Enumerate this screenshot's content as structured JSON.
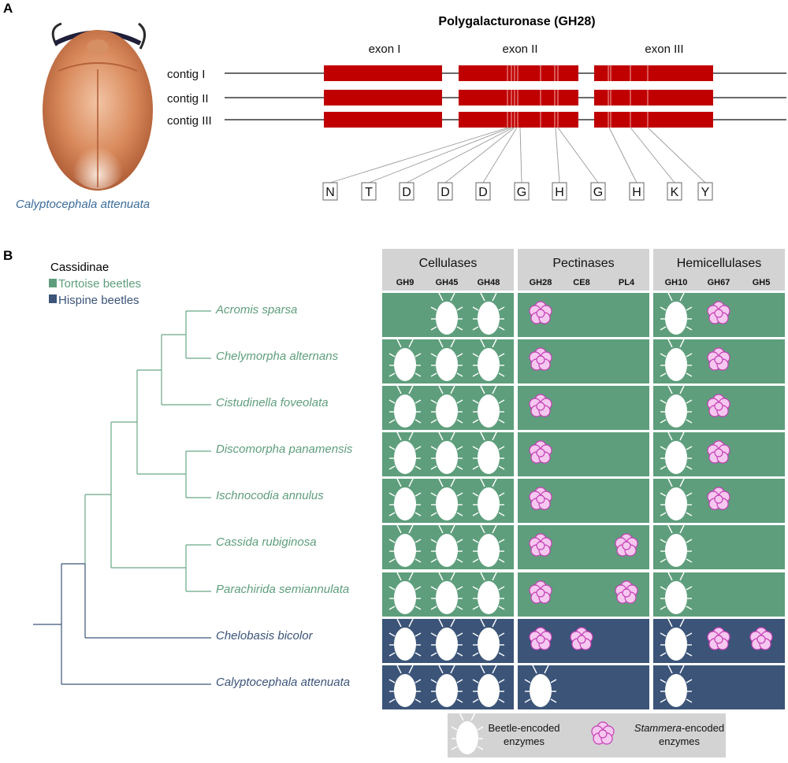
{
  "panel_a": {
    "letter": "A",
    "gene_title": "Polygalacturonase (GH28)",
    "exons": [
      "exon I",
      "exon II",
      "exon III"
    ],
    "contigs": [
      "contig I",
      "contig II",
      "contig III"
    ],
    "residues": [
      "N",
      "T",
      "D",
      "D",
      "D",
      "G",
      "H",
      "G",
      "H",
      "K",
      "Y"
    ],
    "species_label": "Calyptocephala attenuata",
    "exon_color": "#c00000"
  },
  "panel_b": {
    "letter": "B",
    "legend": {
      "title": "Cassidinae",
      "tortoise": "Tortoise beetles",
      "hispine": "Hispine beetles",
      "tortoise_color": "#5e9e7c",
      "hispine_color": "#3b5478"
    },
    "groups": [
      {
        "title": "Cellulases",
        "columns": [
          "GH9",
          "GH45",
          "GH48"
        ]
      },
      {
        "title": "Pectinases",
        "columns": [
          "GH28",
          "CE8",
          "PL4"
        ]
      },
      {
        "title": "Hemicellulases",
        "columns": [
          "GH10",
          "GH67",
          "GH5"
        ]
      }
    ],
    "taxa": [
      {
        "name": "Acromis sparsa",
        "clade": "tortoise",
        "cells": [
          "",
          "B",
          "B",
          "S",
          "",
          "",
          "B",
          "S",
          ""
        ]
      },
      {
        "name": "Chelymorpha alternans",
        "clade": "tortoise",
        "cells": [
          "B",
          "B",
          "B",
          "S",
          "",
          "",
          "B",
          "S",
          ""
        ]
      },
      {
        "name": "Cistudinella foveolata",
        "clade": "tortoise",
        "cells": [
          "B",
          "B",
          "B",
          "S",
          "",
          "",
          "B",
          "S",
          ""
        ]
      },
      {
        "name": "Discomorpha panamensis",
        "clade": "tortoise",
        "cells": [
          "B",
          "B",
          "B",
          "S",
          "",
          "",
          "B",
          "S",
          ""
        ]
      },
      {
        "name": "Ischnocodia annulus",
        "clade": "tortoise",
        "cells": [
          "B",
          "B",
          "B",
          "S",
          "",
          "",
          "B",
          "S",
          ""
        ]
      },
      {
        "name": "Cassida rubiginosa",
        "clade": "tortoise",
        "cells": [
          "B",
          "B",
          "B",
          "S",
          "",
          "S",
          "B",
          "",
          ""
        ]
      },
      {
        "name": "Parachirida semiannulata",
        "clade": "tortoise",
        "cells": [
          "B",
          "B",
          "B",
          "S",
          "",
          "S",
          "B",
          "",
          ""
        ]
      },
      {
        "name": "Chelobasis bicolor",
        "clade": "hispine",
        "cells": [
          "B",
          "B",
          "B",
          "S",
          "S",
          "",
          "B",
          "S",
          "S"
        ]
      },
      {
        "name": "Calyptocephala attenuata",
        "clade": "hispine",
        "cells": [
          "B",
          "B",
          "B",
          "B",
          "",
          "",
          "B",
          "",
          ""
        ]
      }
    ],
    "key": {
      "beetle_line1": "Beetle-encoded",
      "beetle_line2": "enzymes",
      "stammera_italic": "Stammera",
      "stammera_rest": "-encoded",
      "stammera_line2": "enzymes"
    },
    "colors": {
      "header_bg": "#d3d3d3",
      "stammera_fill": "#f6c8f0",
      "stammera_stroke": "#c43fb5"
    }
  }
}
